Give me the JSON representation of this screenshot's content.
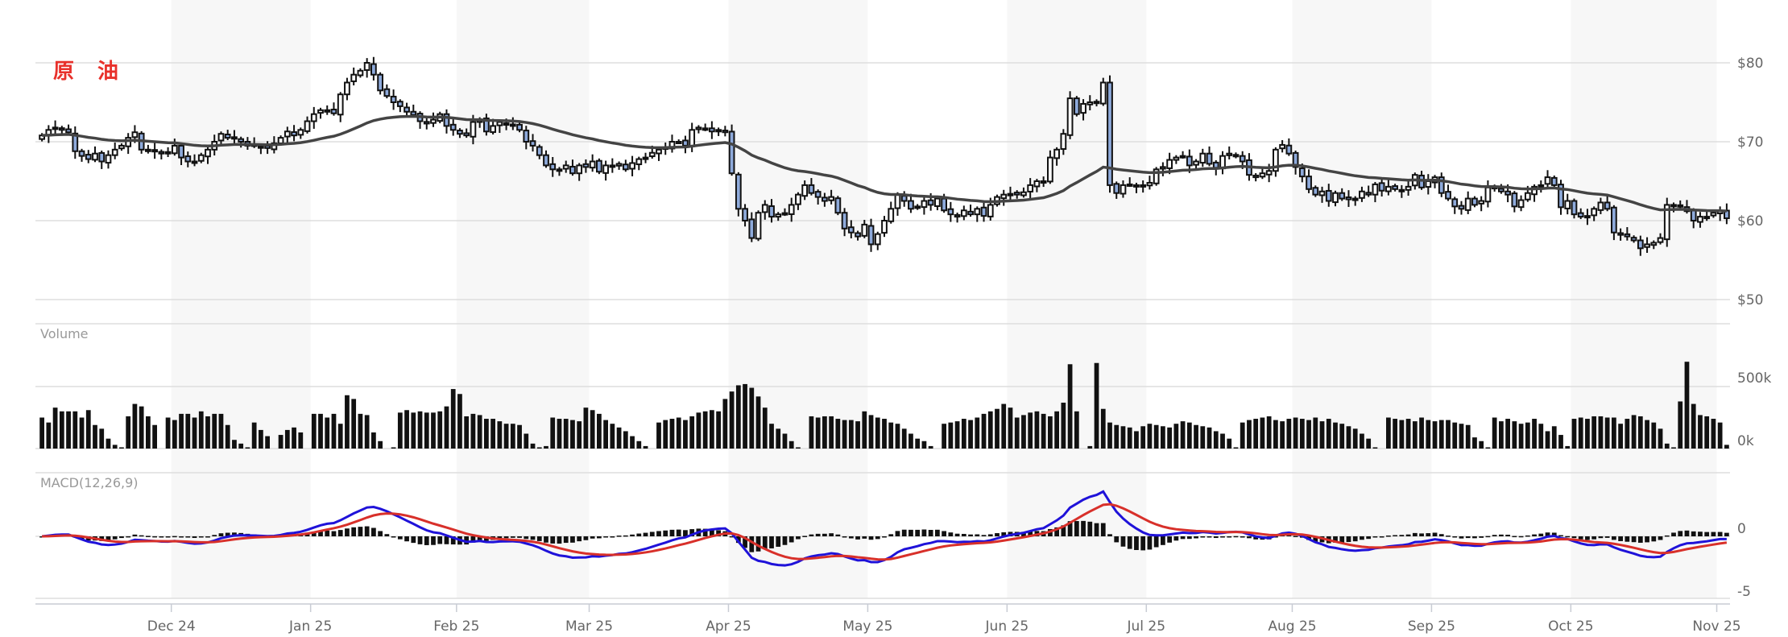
{
  "title": "原 油",
  "colors": {
    "up_fill": "#ffffff",
    "down_fill": "#8eaadb",
    "candle_stroke": "#111111",
    "ma_line": "#444444",
    "macd_line": "#1f12d9",
    "signal_line": "#d8302a",
    "histogram": "#111111",
    "volume": "#111111",
    "grid": "#dddddd",
    "month_shade": "#f7f7f7"
  },
  "chart_data": {
    "type": "candlestick",
    "price_axis": {
      "ticks": [
        80,
        70,
        60,
        50
      ],
      "labels": [
        "$80",
        "$70",
        "$60",
        "$50"
      ],
      "range": [
        50,
        80
      ]
    },
    "volume_panel": {
      "label": "Volume",
      "ticks": [
        500,
        0
      ],
      "tick_labels": [
        "500k",
        "0k"
      ],
      "unit": "k"
    },
    "macd_panel": {
      "label": "MACD(12,26,9)",
      "fast": 12,
      "slow": 26,
      "signal": 9,
      "ticks": [
        0,
        -5
      ],
      "tick_labels": [
        "0",
        "-5"
      ]
    },
    "months": [
      {
        "label": "",
        "shaded": false,
        "closes": [
          70.8,
          71.5,
          71.8,
          71.5,
          71.2,
          68.8,
          68.2,
          67.8,
          68.5,
          67.5,
          68.3,
          69,
          69.5,
          70.5,
          71.2,
          69,
          68.8,
          68.8,
          68.5,
          68.7
        ],
        "volumes": [
          250,
          210,
          330,
          300,
          300,
          300,
          250,
          310,
          190,
          160,
          80,
          30,
          10,
          260,
          360,
          340,
          260,
          190,
          0,
          250
        ]
      },
      {
        "label": "Dec 24",
        "shaded": true,
        "closes": [
          69.5,
          68,
          67.5,
          67.5,
          68.3,
          69,
          70,
          71,
          70.5,
          70.5,
          70,
          69.5,
          69.5,
          69.4,
          69.2,
          69.8,
          70.5,
          71.3,
          70.8,
          71.5,
          72.6
        ],
        "volumes": [
          230,
          280,
          280,
          250,
          300,
          260,
          280,
          280,
          190,
          70,
          40,
          10,
          210,
          150,
          100,
          0,
          110,
          150,
          170,
          130,
          0
        ]
      },
      {
        "label": "Jan 25",
        "shaded": false,
        "closes": [
          73.5,
          74,
          74,
          73.6,
          76,
          77.5,
          78.5,
          79,
          80,
          78.5,
          76.5,
          75.8,
          75,
          74.5,
          73.8,
          73.4,
          72.6,
          72.3,
          72.8,
          73.5,
          72,
          71.5
        ],
        "volumes": [
          280,
          280,
          250,
          280,
          200,
          430,
          400,
          280,
          270,
          130,
          60,
          0,
          10,
          290,
          310,
          290,
          300,
          290,
          290,
          300,
          340,
          480
        ]
      },
      {
        "label": "Feb 25",
        "shaded": true,
        "closes": [
          71,
          70.8,
          72.5,
          72.8,
          71.3,
          72,
          72.5,
          72.2,
          72,
          71.5,
          70,
          69.5,
          68.3,
          67,
          66.5,
          66.5,
          67,
          66,
          67,
          66.8
        ],
        "volumes": [
          440,
          260,
          280,
          270,
          240,
          240,
          220,
          200,
          200,
          190,
          120,
          40,
          10,
          20,
          250,
          240,
          240,
          230,
          220,
          330
        ]
      },
      {
        "label": "Mar 25",
        "shaded": false,
        "closes": [
          67.5,
          66.2,
          67,
          66.8,
          67.2,
          66.5,
          67.3,
          67.8,
          68,
          68.6,
          69,
          69.3,
          70,
          70,
          69.5,
          71.5,
          71.8,
          71.7,
          71.3,
          71.5,
          71.2
        ],
        "volumes": [
          310,
          280,
          230,
          200,
          170,
          140,
          100,
          60,
          20,
          0,
          210,
          230,
          240,
          250,
          230,
          260,
          290,
          300,
          310,
          300,
          400
        ]
      },
      {
        "label": "Apr 25",
        "shaded": true,
        "closes": [
          66,
          61.5,
          60,
          57.8,
          61,
          62,
          60.5,
          60.8,
          60.9,
          62,
          63.3,
          64.5,
          63.5,
          63,
          62.5,
          63,
          61,
          59,
          58.5,
          58,
          59.5
        ],
        "volumes": [
          460,
          510,
          520,
          490,
          420,
          330,
          200,
          160,
          120,
          60,
          10,
          0,
          260,
          250,
          260,
          260,
          240,
          230,
          230,
          220,
          300
        ]
      },
      {
        "label": "May 25",
        "shaded": false,
        "closes": [
          57,
          58.3,
          60,
          61.5,
          63.3,
          62.5,
          61.5,
          61.8,
          62.5,
          62,
          62.8,
          61.3,
          60.8,
          60.5,
          61.3,
          60.8,
          61.5,
          60.6,
          62,
          63,
          63.3
        ],
        "volumes": [
          270,
          250,
          240,
          210,
          200,
          160,
          120,
          80,
          60,
          20,
          0,
          200,
          210,
          220,
          240,
          230,
          250,
          280,
          300,
          320,
          360
        ]
      },
      {
        "label": "Jun 25",
        "shaded": true,
        "closes": [
          63.4,
          63.3,
          63.6,
          64.5,
          65,
          64.8,
          68,
          69,
          71,
          75.5,
          73.5,
          74.8,
          75,
          75,
          77.5,
          64.5,
          63.5,
          64.5,
          64.6,
          64.5,
          64.3
        ],
        "volumes": [
          330,
          250,
          270,
          290,
          300,
          280,
          260,
          300,
          370,
          680,
          300,
          0,
          20,
          690,
          320,
          210,
          190,
          180,
          170,
          140,
          180
        ]
      },
      {
        "label": "Jul 25",
        "shaded": false,
        "closes": [
          64.8,
          66.5,
          66.8,
          67.7,
          68,
          68.2,
          67,
          67.5,
          68.5,
          67.2,
          66.7,
          68.2,
          68.5,
          68.2,
          67.5,
          65.8,
          65.5,
          66,
          66.3,
          69,
          69.6,
          68.5
        ],
        "volumes": [
          200,
          190,
          180,
          170,
          200,
          220,
          210,
          190,
          180,
          170,
          140,
          120,
          80,
          10,
          210,
          230,
          240,
          250,
          260,
          230,
          220,
          240
        ]
      },
      {
        "label": "Aug 25",
        "shaded": true,
        "closes": [
          66.8,
          65.6,
          64,
          63.3,
          63.7,
          62.5,
          63.5,
          62.8,
          62.7,
          62.8,
          63.7,
          63.3,
          64.6,
          63.8,
          64.3,
          64,
          63.9,
          64.3,
          65.8,
          64.2,
          65
        ],
        "volumes": [
          250,
          240,
          230,
          250,
          220,
          240,
          210,
          200,
          180,
          160,
          120,
          80,
          10,
          0,
          250,
          240,
          230,
          240,
          220,
          250,
          230
        ]
      },
      {
        "label": "Sep 25",
        "shaded": false,
        "closes": [
          65.5,
          63.5,
          62.8,
          61.8,
          61.5,
          62.8,
          62,
          62.5,
          64.2,
          64.2,
          63.7,
          63.3,
          61.8,
          62.6,
          63.5,
          64.3,
          64.5,
          65.5,
          64.5,
          61.7,
          62.5
        ],
        "volumes": [
          220,
          230,
          230,
          210,
          200,
          190,
          90,
          60,
          10,
          250,
          220,
          240,
          220,
          200,
          210,
          240,
          200,
          140,
          180,
          110,
          20
        ]
      },
      {
        "label": "Oct 25",
        "shaded": true,
        "closes": [
          60.8,
          60.5,
          60.6,
          61.5,
          62.3,
          61.5,
          58.5,
          58.2,
          58,
          57.5,
          56.5,
          57,
          57.2,
          57.8,
          62,
          61.8,
          61.8,
          61.2,
          60,
          60.5,
          60.5,
          61
        ],
        "volumes": [
          240,
          250,
          240,
          260,
          260,
          250,
          250,
          200,
          240,
          270,
          260,
          230,
          210,
          160,
          40,
          10,
          380,
          700,
          360,
          270,
          260,
          240
        ]
      },
      {
        "label": "Nov 25",
        "shaded": false,
        "closes": [
          61.2,
          60.3
        ],
        "volumes": [
          210,
          30
        ]
      }
    ]
  }
}
